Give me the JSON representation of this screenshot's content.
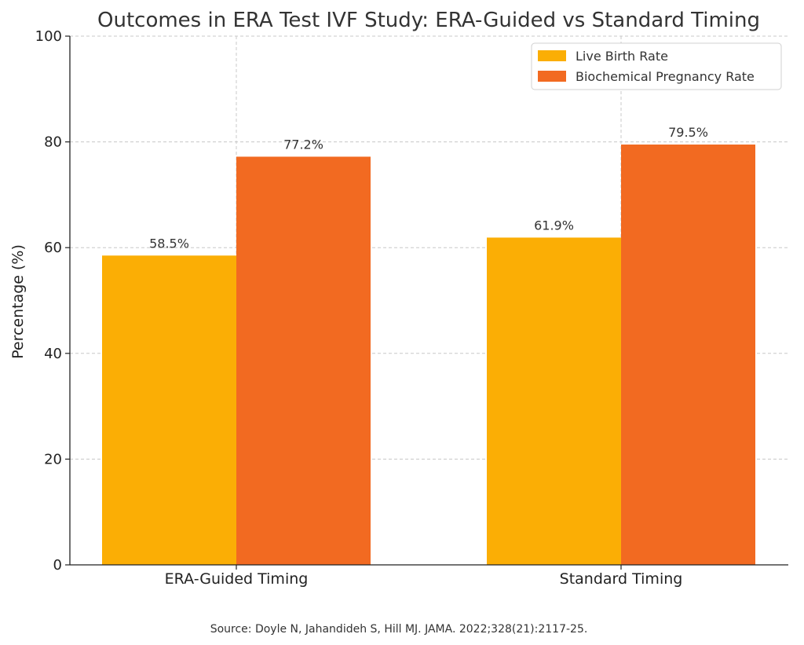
{
  "chart_data": {
    "type": "bar",
    "title": "Outcomes in ERA Test IVF Study: ERA-Guided vs Standard Timing",
    "xlabel": "",
    "ylabel": "Percentage (%)",
    "ylim": [
      0,
      100
    ],
    "yticks": [
      "0",
      "20",
      "40",
      "60",
      "80",
      "100"
    ],
    "ytick_values": [
      0,
      20,
      40,
      60,
      80,
      100
    ],
    "categories": [
      "ERA-Guided Timing",
      "Standard Timing"
    ],
    "series": [
      {
        "name": "Live Birth Rate",
        "values": [
          58.5,
          61.9
        ],
        "labels": [
          "58.5%",
          "61.9%"
        ],
        "color": "#FBAE05"
      },
      {
        "name": "Biochemical Pregnancy Rate",
        "values": [
          77.2,
          79.5
        ],
        "labels": [
          "77.2%",
          "79.5%"
        ],
        "color": "#F26A21"
      }
    ],
    "grid": true,
    "legend_position": "top-right",
    "source": "Source: Doyle N, Jahandideh S, Hill MJ. JAMA. 2022;328(21):2117-25."
  }
}
